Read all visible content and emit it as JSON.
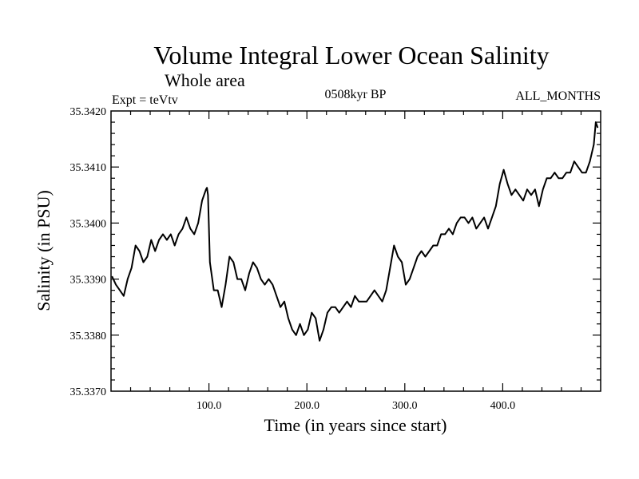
{
  "chart_data": {
    "type": "line",
    "title": "Volume Integral Lower Ocean Salinity",
    "subtitle": "Whole area",
    "left_label": "Expt = teVtv",
    "center_label": "0508kyr BP",
    "right_label": "ALL_MONTHS",
    "xlabel": "Time (in years since start)",
    "ylabel": "Salinity (in PSU)",
    "xlim": [
      0,
      500
    ],
    "ylim": [
      35.337,
      35.342
    ],
    "x_ticks": [
      100,
      200,
      300,
      400
    ],
    "x_tick_labels": [
      "100.0",
      "200.0",
      "300.0",
      "400.0"
    ],
    "y_ticks": [
      35.337,
      35.338,
      35.339,
      35.34,
      35.341,
      35.342
    ],
    "y_tick_labels": [
      "35.3370",
      "35.3380",
      "35.3390",
      "35.3400",
      "35.3410",
      "35.3420"
    ],
    "series": [
      {
        "name": "Salinity",
        "x": [
          1,
          5,
          9,
          13,
          17,
          21,
          25,
          29,
          33,
          37,
          41,
          45,
          49,
          53,
          57,
          61,
          65,
          69,
          73,
          77,
          81,
          85,
          89,
          93,
          97,
          98,
          99,
          101,
          105,
          109,
          113,
          117,
          121,
          125,
          129,
          133,
          137,
          141,
          145,
          149,
          153,
          157,
          161,
          165,
          169,
          173,
          177,
          181,
          185,
          189,
          193,
          197,
          201,
          205,
          209,
          213,
          217,
          221,
          225,
          229,
          233,
          237,
          241,
          245,
          249,
          253,
          257,
          261,
          265,
          269,
          273,
          277,
          281,
          285,
          289,
          293,
          297,
          301,
          305,
          309,
          313,
          317,
          321,
          325,
          329,
          333,
          337,
          341,
          345,
          349,
          353,
          357,
          361,
          365,
          369,
          373,
          377,
          381,
          385,
          389,
          393,
          397,
          401,
          405,
          409,
          413,
          417,
          421,
          425,
          429,
          433,
          437,
          441,
          445,
          449,
          453,
          457,
          461,
          465,
          469,
          473,
          477,
          481,
          485,
          489,
          493,
          495,
          497
        ],
        "y": [
          35.33905,
          35.3389,
          35.3388,
          35.3387,
          35.339,
          35.3392,
          35.3396,
          35.3395,
          35.3393,
          35.3394,
          35.3397,
          35.3395,
          35.3397,
          35.3398,
          35.3397,
          35.3398,
          35.3396,
          35.3398,
          35.3399,
          35.3401,
          35.3399,
          35.3398,
          35.34,
          35.3404,
          35.3406,
          35.34063,
          35.3405,
          35.3393,
          35.3388,
          35.3388,
          35.3385,
          35.3389,
          35.3394,
          35.3393,
          35.339,
          35.339,
          35.3388,
          35.3391,
          35.3393,
          35.3392,
          35.339,
          35.3389,
          35.339,
          35.3389,
          35.3387,
          35.3385,
          35.3386,
          35.3383,
          35.3381,
          35.338,
          35.3382,
          35.338,
          35.3381,
          35.3384,
          35.3383,
          35.3379,
          35.3381,
          35.3384,
          35.3385,
          35.3385,
          35.3384,
          35.3385,
          35.3386,
          35.3385,
          35.3387,
          35.3386,
          35.3386,
          35.3386,
          35.3387,
          35.3388,
          35.3387,
          35.3386,
          35.3388,
          35.3392,
          35.3396,
          35.3394,
          35.3393,
          35.3389,
          35.339,
          35.3392,
          35.3394,
          35.3395,
          35.3394,
          35.3395,
          35.3396,
          35.3396,
          35.3398,
          35.3398,
          35.3399,
          35.3398,
          35.34,
          35.3401,
          35.3401,
          35.34,
          35.3401,
          35.3399,
          35.34,
          35.3401,
          35.3399,
          35.3401,
          35.3403,
          35.3407,
          35.34095,
          35.3407,
          35.3405,
          35.3406,
          35.3405,
          35.3404,
          35.3406,
          35.3405,
          35.3406,
          35.3403,
          35.3406,
          35.3408,
          35.3408,
          35.3409,
          35.3408,
          35.3408,
          35.3409,
          35.3409,
          35.3411,
          35.341,
          35.3409,
          35.3409,
          35.3411,
          35.3414,
          35.3418,
          35.3417
        ]
      }
    ]
  }
}
